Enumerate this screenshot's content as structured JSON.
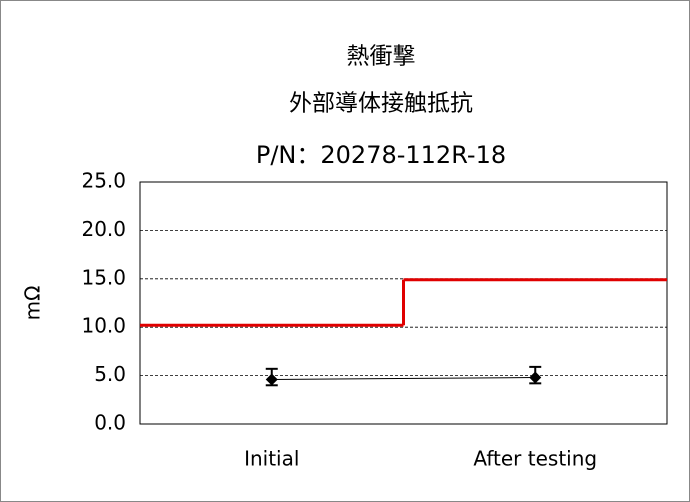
{
  "chart_data": {
    "type": "line",
    "title": "熱衝撃",
    "subtitle": "外部導体接触抵抗",
    "part_number": "P/N：20278-112R-18",
    "y_label": "mΩ",
    "categories": [
      "Initial",
      "After testing"
    ],
    "series": [
      {
        "color": "#000000",
        "values": [
          4.6,
          4.8
        ],
        "high": [
          5.7,
          5.9
        ],
        "low": [
          4.0,
          4.2
        ]
      }
    ],
    "limit": {
      "color": "#e00000",
      "values": [
        10.2,
        14.9
      ]
    },
    "ylim": [
      0,
      25
    ],
    "yticks": [
      {
        "value": 0,
        "label": "0.0"
      },
      {
        "value": 5,
        "label": "5.0"
      },
      {
        "value": 10,
        "label": "10.0"
      },
      {
        "value": 15,
        "label": "15.0"
      },
      {
        "value": 20,
        "label": "20.0"
      },
      {
        "value": 25,
        "label": "25.0"
      }
    ],
    "grid": true
  }
}
